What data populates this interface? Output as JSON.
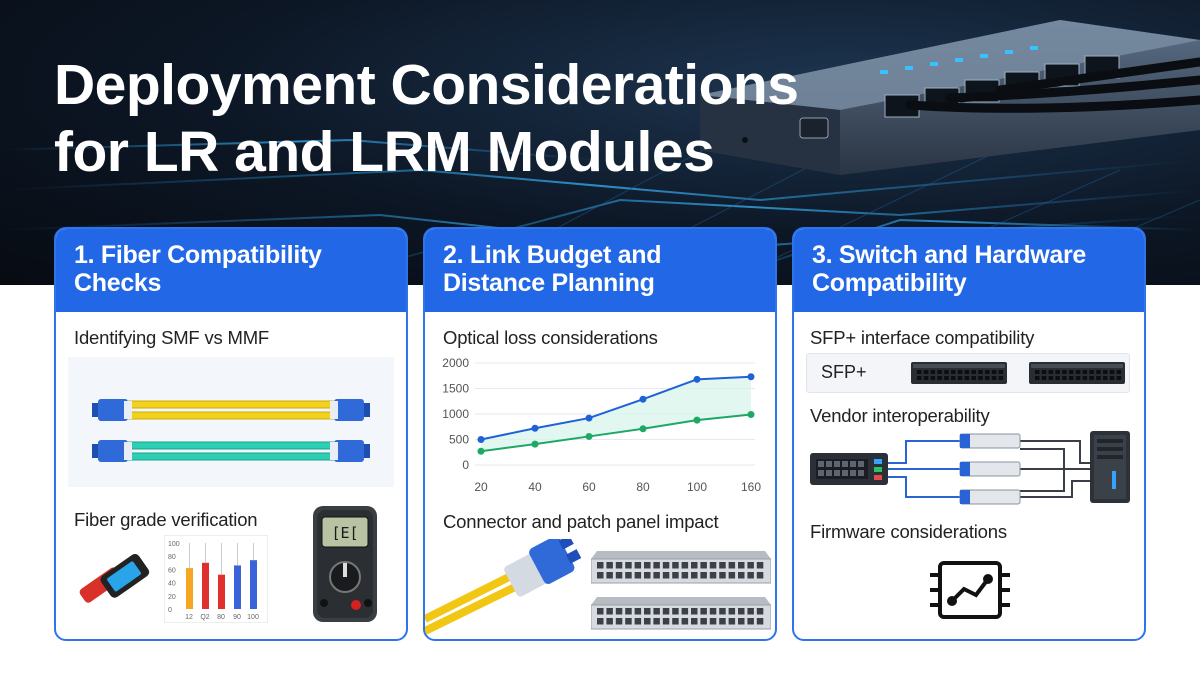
{
  "title": {
    "line1": "Deployment Considerations",
    "line2": "for LR and LRM Modules"
  },
  "cards": [
    {
      "heading_line1": "1. Fiber Compatibility",
      "heading_line2": "Checks",
      "section1": "Identifying SMF vs MMF",
      "section2": "Fiber grade verification",
      "mini_chart": {
        "y_ticks": [
          "100",
          "80",
          "60",
          "40",
          "20",
          "0"
        ],
        "x_ticks": [
          "12",
          "Q2",
          "80",
          "90",
          "100"
        ],
        "bars": [
          {
            "color": "#f5a623",
            "level": 0.62
          },
          {
            "color": "#e0302d",
            "level": 0.7
          },
          {
            "color": "#e0302d",
            "level": 0.52
          },
          {
            "color": "#3a63d9",
            "level": 0.66
          },
          {
            "color": "#3a63d9",
            "level": 0.74
          }
        ]
      },
      "meter_display": "[E[",
      "icons": [
        "fiber-cable-icon",
        "fiber-tester-icon",
        "multimeter-icon"
      ]
    },
    {
      "heading_line1": "2. Link Budget and",
      "heading_line2": "Distance Planning",
      "section1": "Optical loss considerations",
      "section2": "Connector and patch panel impact",
      "icons": [
        "lc-connector-icon",
        "patch-panel-icon"
      ]
    },
    {
      "heading_line1": "3. Switch and Hardware",
      "heading_line2": "Compatibility",
      "section1": "SFP+ interface compatibility",
      "sfp_label": "SFP+",
      "section2": "Vendor interoperability",
      "section3": "Firmware considerations",
      "icons": [
        "switch-icon",
        "server-tower-icon",
        "firmware-chip-icon"
      ]
    }
  ],
  "chart_data": {
    "type": "line",
    "title": "",
    "xlabel": "",
    "ylabel": "",
    "x": [
      20,
      40,
      60,
      80,
      100,
      160
    ],
    "x_tick_labels": [
      "20",
      "40",
      "60",
      "80",
      "100",
      "160"
    ],
    "ylim": [
      0,
      2000
    ],
    "y_ticks": [
      0,
      500,
      1000,
      1500,
      2000
    ],
    "grid": true,
    "legend": "none",
    "series": [
      {
        "color": "#1f62d8",
        "values": [
          500,
          720,
          920,
          1290,
          1680,
          1730
        ]
      },
      {
        "color": "#1ea865",
        "values": [
          270,
          410,
          560,
          710,
          880,
          990
        ]
      }
    ]
  },
  "colors": {
    "accent": "#2167e6",
    "card_border": "#2f74e8",
    "hero_dark": "#0c1624"
  }
}
